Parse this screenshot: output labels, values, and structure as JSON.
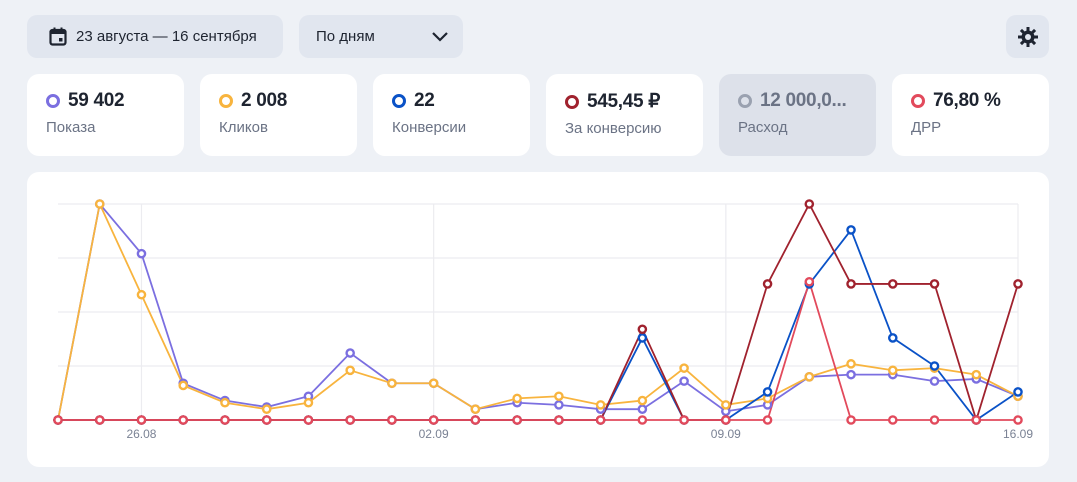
{
  "toolbar": {
    "date_range": "23 августа — 16 сентября",
    "grouping": "По дням",
    "calendar_icon": "calendar-icon",
    "chevron_icon": "chevron-down-icon",
    "settings_icon": "gear-icon"
  },
  "metrics": [
    {
      "value": "59 402",
      "label": "Показа",
      "color": "#7b6fe0",
      "active": false
    },
    {
      "value": "2 008",
      "label": "Кликов",
      "color": "#f8b43e",
      "active": false
    },
    {
      "value": "22",
      "label": "Конверсии",
      "color": "#0a52c7",
      "active": false
    },
    {
      "value": "545,45 ₽",
      "label": "За конверсию",
      "color": "#a0222e",
      "active": false
    },
    {
      "value": "12 000,0...",
      "label": "Расход",
      "color": "#9aa1b0",
      "active": true
    },
    {
      "value": "76,80 %",
      "label": "ДРР",
      "color": "#e24a5c",
      "active": false
    }
  ],
  "chart_data": {
    "type": "line",
    "title": "",
    "xlabel": "",
    "ylabel": "",
    "ylim": [
      0,
      100
    ],
    "grid": true,
    "y_axis_labels_shown": false,
    "x": [
      "24.08",
      "25.08",
      "26.08",
      "27.08",
      "28.08",
      "29.08",
      "30.08",
      "31.08",
      "01.09",
      "02.09",
      "03.09",
      "04.09",
      "05.09",
      "06.09",
      "07.09",
      "08.09",
      "09.09",
      "10.09",
      "11.09",
      "12.09",
      "13.09",
      "14.09",
      "15.09",
      "16.09"
    ],
    "x_tick_labels": [
      "26.08",
      "02.09",
      "09.09",
      "16.09"
    ],
    "x_tick_indices": [
      2,
      9,
      16,
      23
    ],
    "series": [
      {
        "name": "Показа",
        "color": "#7b6fe0",
        "values": [
          0,
          100,
          77,
          17,
          9,
          6,
          11,
          31,
          17,
          17,
          5,
          8,
          7,
          5,
          5,
          18,
          4,
          7,
          20,
          21,
          21,
          18,
          19,
          11
        ]
      },
      {
        "name": "Кликов",
        "color": "#f8b43e",
        "values": [
          0,
          100,
          58,
          16,
          8,
          5,
          8,
          23,
          17,
          17,
          5,
          10,
          11,
          7,
          9,
          24,
          7,
          10,
          20,
          26,
          23,
          24,
          21,
          11
        ]
      },
      {
        "name": "Конверсии",
        "color": "#0a52c7",
        "values": [
          0,
          0,
          0,
          0,
          0,
          0,
          0,
          0,
          0,
          0,
          0,
          0,
          0,
          0,
          38,
          0,
          0,
          13,
          63,
          88,
          38,
          25,
          0,
          13
        ]
      },
      {
        "name": "За конверсию",
        "color": "#a0222e",
        "values": [
          0,
          0,
          0,
          0,
          0,
          0,
          0,
          0,
          0,
          0,
          0,
          0,
          0,
          0,
          42,
          0,
          0,
          63,
          100,
          63,
          63,
          63,
          0,
          63
        ]
      },
      {
        "name": "ДРР",
        "color": "#e24a5c",
        "values": [
          0,
          0,
          0,
          0,
          0,
          0,
          0,
          0,
          0,
          0,
          0,
          0,
          0,
          0,
          0,
          0,
          0,
          0,
          64,
          0,
          0,
          0,
          0,
          0
        ]
      }
    ]
  }
}
